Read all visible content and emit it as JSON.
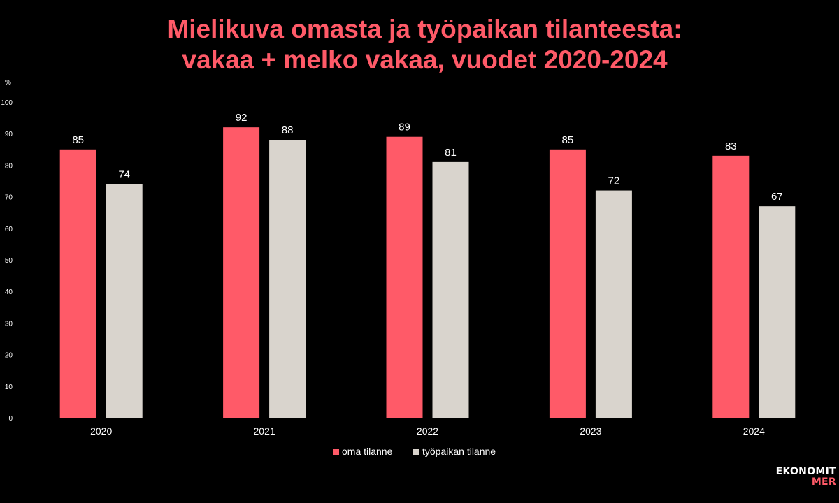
{
  "title_line1": "Mielikuva omasta ja työpaikan tilanteesta:",
  "title_line2": "vakaa + melko vakaa, vuodet 2020-2024",
  "logo": {
    "line1": "EKONOMIT",
    "line2": "MER"
  },
  "colors": {
    "oma": "#ff5a68",
    "tyopaikka": "#d9d4cd",
    "title": "#ff5a68",
    "background": "#000000",
    "text": "#ffffff"
  },
  "chart_data": {
    "type": "bar",
    "title": "Mielikuva omasta ja työpaikan tilanteesta: vakaa + melko vakaa, vuodet 2020-2024",
    "categories": [
      "2020",
      "2021",
      "2022",
      "2023",
      "2024"
    ],
    "series": [
      {
        "name": "oma tilanne",
        "values": [
          85,
          92,
          89,
          85,
          83
        ]
      },
      {
        "name": "työpaikan tilanne",
        "values": [
          74,
          88,
          81,
          72,
          67
        ]
      }
    ],
    "ylabel": "%",
    "ylim": [
      0,
      100
    ],
    "yticks": [
      0,
      10,
      20,
      30,
      40,
      50,
      60,
      70,
      80,
      90,
      100
    ],
    "grid": false,
    "legend": "bottom"
  }
}
